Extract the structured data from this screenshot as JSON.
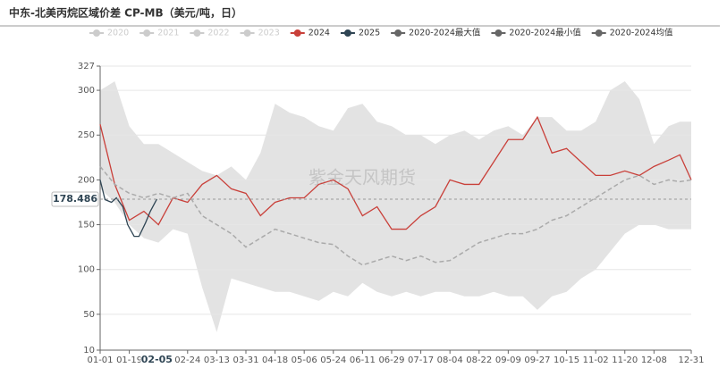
{
  "chart_data": {
    "type": "line",
    "title": "中东-北美丙烷区域价差 CP-MB（美元/吨，日）",
    "watermark": "紫金天风期货",
    "inactive_legend": [
      "2020",
      "2021",
      "2022",
      "2023"
    ],
    "inactive_color": "#cccccc",
    "x": [
      "01-01",
      "01-10",
      "01-19",
      "01-28",
      "02-06",
      "02-15",
      "02-24",
      "03-04",
      "03-13",
      "03-22",
      "03-31",
      "04-09",
      "04-18",
      "04-27",
      "05-06",
      "05-15",
      "05-24",
      "06-02",
      "06-11",
      "06-20",
      "06-29",
      "07-08",
      "07-17",
      "07-26",
      "08-04",
      "08-13",
      "08-22",
      "08-31",
      "09-09",
      "09-18",
      "09-27",
      "10-06",
      "10-15",
      "10-24",
      "11-02",
      "11-11",
      "11-20",
      "11-29",
      "12-08",
      "12-17",
      "12-24",
      "12-31"
    ],
    "xlim": [
      "01-01",
      "12-31"
    ],
    "xticks": [
      "01-01",
      "01-19",
      "02-24",
      "03-13",
      "03-31",
      "04-18",
      "05-06",
      "05-24",
      "06-11",
      "06-29",
      "07-17",
      "08-04",
      "08-22",
      "09-09",
      "09-27",
      "10-15",
      "11-02",
      "11-20",
      "12-08",
      "12-31"
    ],
    "ylim": [
      10,
      327
    ],
    "yticks": [
      10,
      50,
      100,
      150,
      200,
      250,
      300,
      327
    ],
    "grid": true,
    "series": [
      {
        "name": "2024",
        "color": "#c9403a",
        "values": [
          262,
          195,
          155,
          165,
          150,
          180,
          175,
          195,
          205,
          190,
          185,
          160,
          175,
          180,
          180,
          195,
          200,
          190,
          160,
          170,
          145,
          145,
          160,
          170,
          200,
          195,
          195,
          220,
          245,
          245,
          270,
          230,
          235,
          220,
          205,
          205,
          210,
          205,
          215,
          222,
          228,
          200
        ]
      },
      {
        "name": "2025",
        "color": "#2f4554",
        "x": [
          "01-01",
          "01-04",
          "01-08",
          "01-11",
          "01-15",
          "01-18",
          "01-22",
          "01-25",
          "01-29",
          "02-01",
          "02-05"
        ],
        "values": [
          200,
          178,
          175,
          180,
          170,
          150,
          137,
          137,
          152,
          165,
          178.486
        ]
      },
      {
        "name": "2020-2024最大值",
        "color": "#666666",
        "fill": "#e3e3e3",
        "values": [
          300,
          310,
          260,
          240,
          240,
          230,
          220,
          210,
          205,
          215,
          200,
          230,
          285,
          275,
          270,
          260,
          255,
          280,
          285,
          265,
          260,
          250,
          250,
          240,
          250,
          255,
          245,
          255,
          260,
          250,
          270,
          270,
          255,
          255,
          265,
          300,
          310,
          290,
          240,
          260,
          265,
          265
        ]
      },
      {
        "name": "2020-2024最小值",
        "color": "#666666",
        "fill": "#ffffff",
        "values": [
          190,
          175,
          150,
          135,
          130,
          145,
          140,
          80,
          30,
          90,
          85,
          80,
          75,
          75,
          70,
          65,
          75,
          70,
          85,
          75,
          70,
          75,
          70,
          75,
          75,
          70,
          70,
          75,
          70,
          70,
          55,
          70,
          75,
          90,
          100,
          120,
          140,
          150,
          150,
          145,
          145,
          145
        ]
      },
      {
        "name": "2020-2024均值",
        "color": "#666666",
        "line_color": "#aaaaaa",
        "dash": true,
        "values": [
          215,
          195,
          185,
          180,
          185,
          180,
          185,
          160,
          150,
          140,
          125,
          135,
          145,
          140,
          135,
          130,
          128,
          115,
          105,
          110,
          115,
          110,
          115,
          108,
          110,
          120,
          130,
          135,
          140,
          140,
          145,
          155,
          160,
          170,
          180,
          190,
          200,
          205,
          195,
          200,
          198,
          200
        ]
      }
    ],
    "axis_pointer": {
      "x": "02-05",
      "y": 178.486
    }
  }
}
